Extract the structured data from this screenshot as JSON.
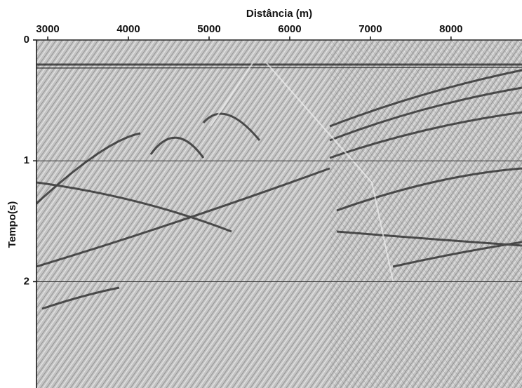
{
  "chart_data": {
    "type": "seismic-section",
    "xlabel": "Distância (m)",
    "ylabel": "Tempo(s)",
    "xlim": [
      2860,
      8880
    ],
    "xticks": [
      3000,
      4000,
      5000,
      6000,
      7000,
      8000
    ],
    "ylim": [
      0,
      2.88
    ],
    "yticks": [
      0,
      1,
      2
    ],
    "grid": true,
    "x_axis_position": "top",
    "y_inverted": true
  }
}
